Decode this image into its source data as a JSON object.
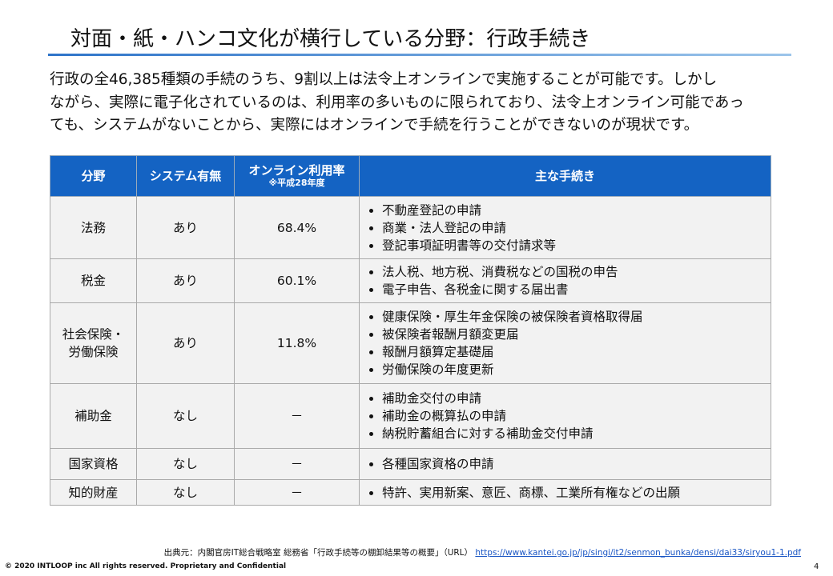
{
  "header": {
    "title": "対面・紙・ハンコ文化が横行している分野：行政手続き"
  },
  "intro": [
    "行政の全46,385種類の手続のうち、9割以上は法令上オンラインで実施することが可能です。しかし",
    "ながら、実際に電子化されているのは、利用率の多いものに限られており、法令上オンライン可能であっ",
    "ても、システムがないことから、実際にはオンラインで手続を行うことができないのが現状です。"
  ],
  "table": {
    "columns": [
      {
        "label": "分野"
      },
      {
        "label": "システム有無"
      },
      {
        "label": "オンライン利用率",
        "note": "※平成28年度"
      },
      {
        "label": "主な手続き"
      }
    ],
    "rows": [
      {
        "field": [
          "法務"
        ],
        "system": "あり",
        "rate": "68.4%",
        "procedures": [
          "不動産登記の申請",
          "商業・法人登記の申請",
          "登記事項証明書等の交付請求等"
        ]
      },
      {
        "field": [
          "税金"
        ],
        "system": "あり",
        "rate": "60.1%",
        "procedures": [
          "法人税、地方税、消費税などの国税の申告",
          "電子申告、各税金に関する届出書"
        ]
      },
      {
        "field": [
          "社会保険・",
          "労働保険"
        ],
        "system": "あり",
        "rate": "11.8%",
        "procedures": [
          "健康保険・厚生年金保険の被保険者資格取得届",
          "被保険者報酬月額変更届",
          "報酬月額算定基礎届",
          "労働保険の年度更新"
        ]
      },
      {
        "field": [
          "補助金"
        ],
        "system": "なし",
        "rate": "－",
        "procedures": [
          "補助金交付の申請",
          "補助金の概算払の申請",
          "納税貯蓄組合に対する補助金交付申請"
        ]
      },
      {
        "field": [
          "国家資格"
        ],
        "system": "なし",
        "rate": "－",
        "procedures": [
          "各種国家資格の申請"
        ]
      },
      {
        "field": [
          "知的財産"
        ],
        "system": "なし",
        "rate": "－",
        "procedures": [
          "特許、実用新案、意匠、商標、工業所有権などの出願"
        ]
      }
    ]
  },
  "footer": {
    "source": "出典元：内閣官房IT総合戦略室 総務省「行政手続等の棚卸結果等の概要」（URL）",
    "url": "https://www.kantei.go.jp/jp/singi/it2/senmon_bunka/densi/dai33/siryou1-1.pdf",
    "copyright": "© 2020 INTLOOP inc All rights reserved.  Proprietary and Confidential",
    "page": "4"
  }
}
